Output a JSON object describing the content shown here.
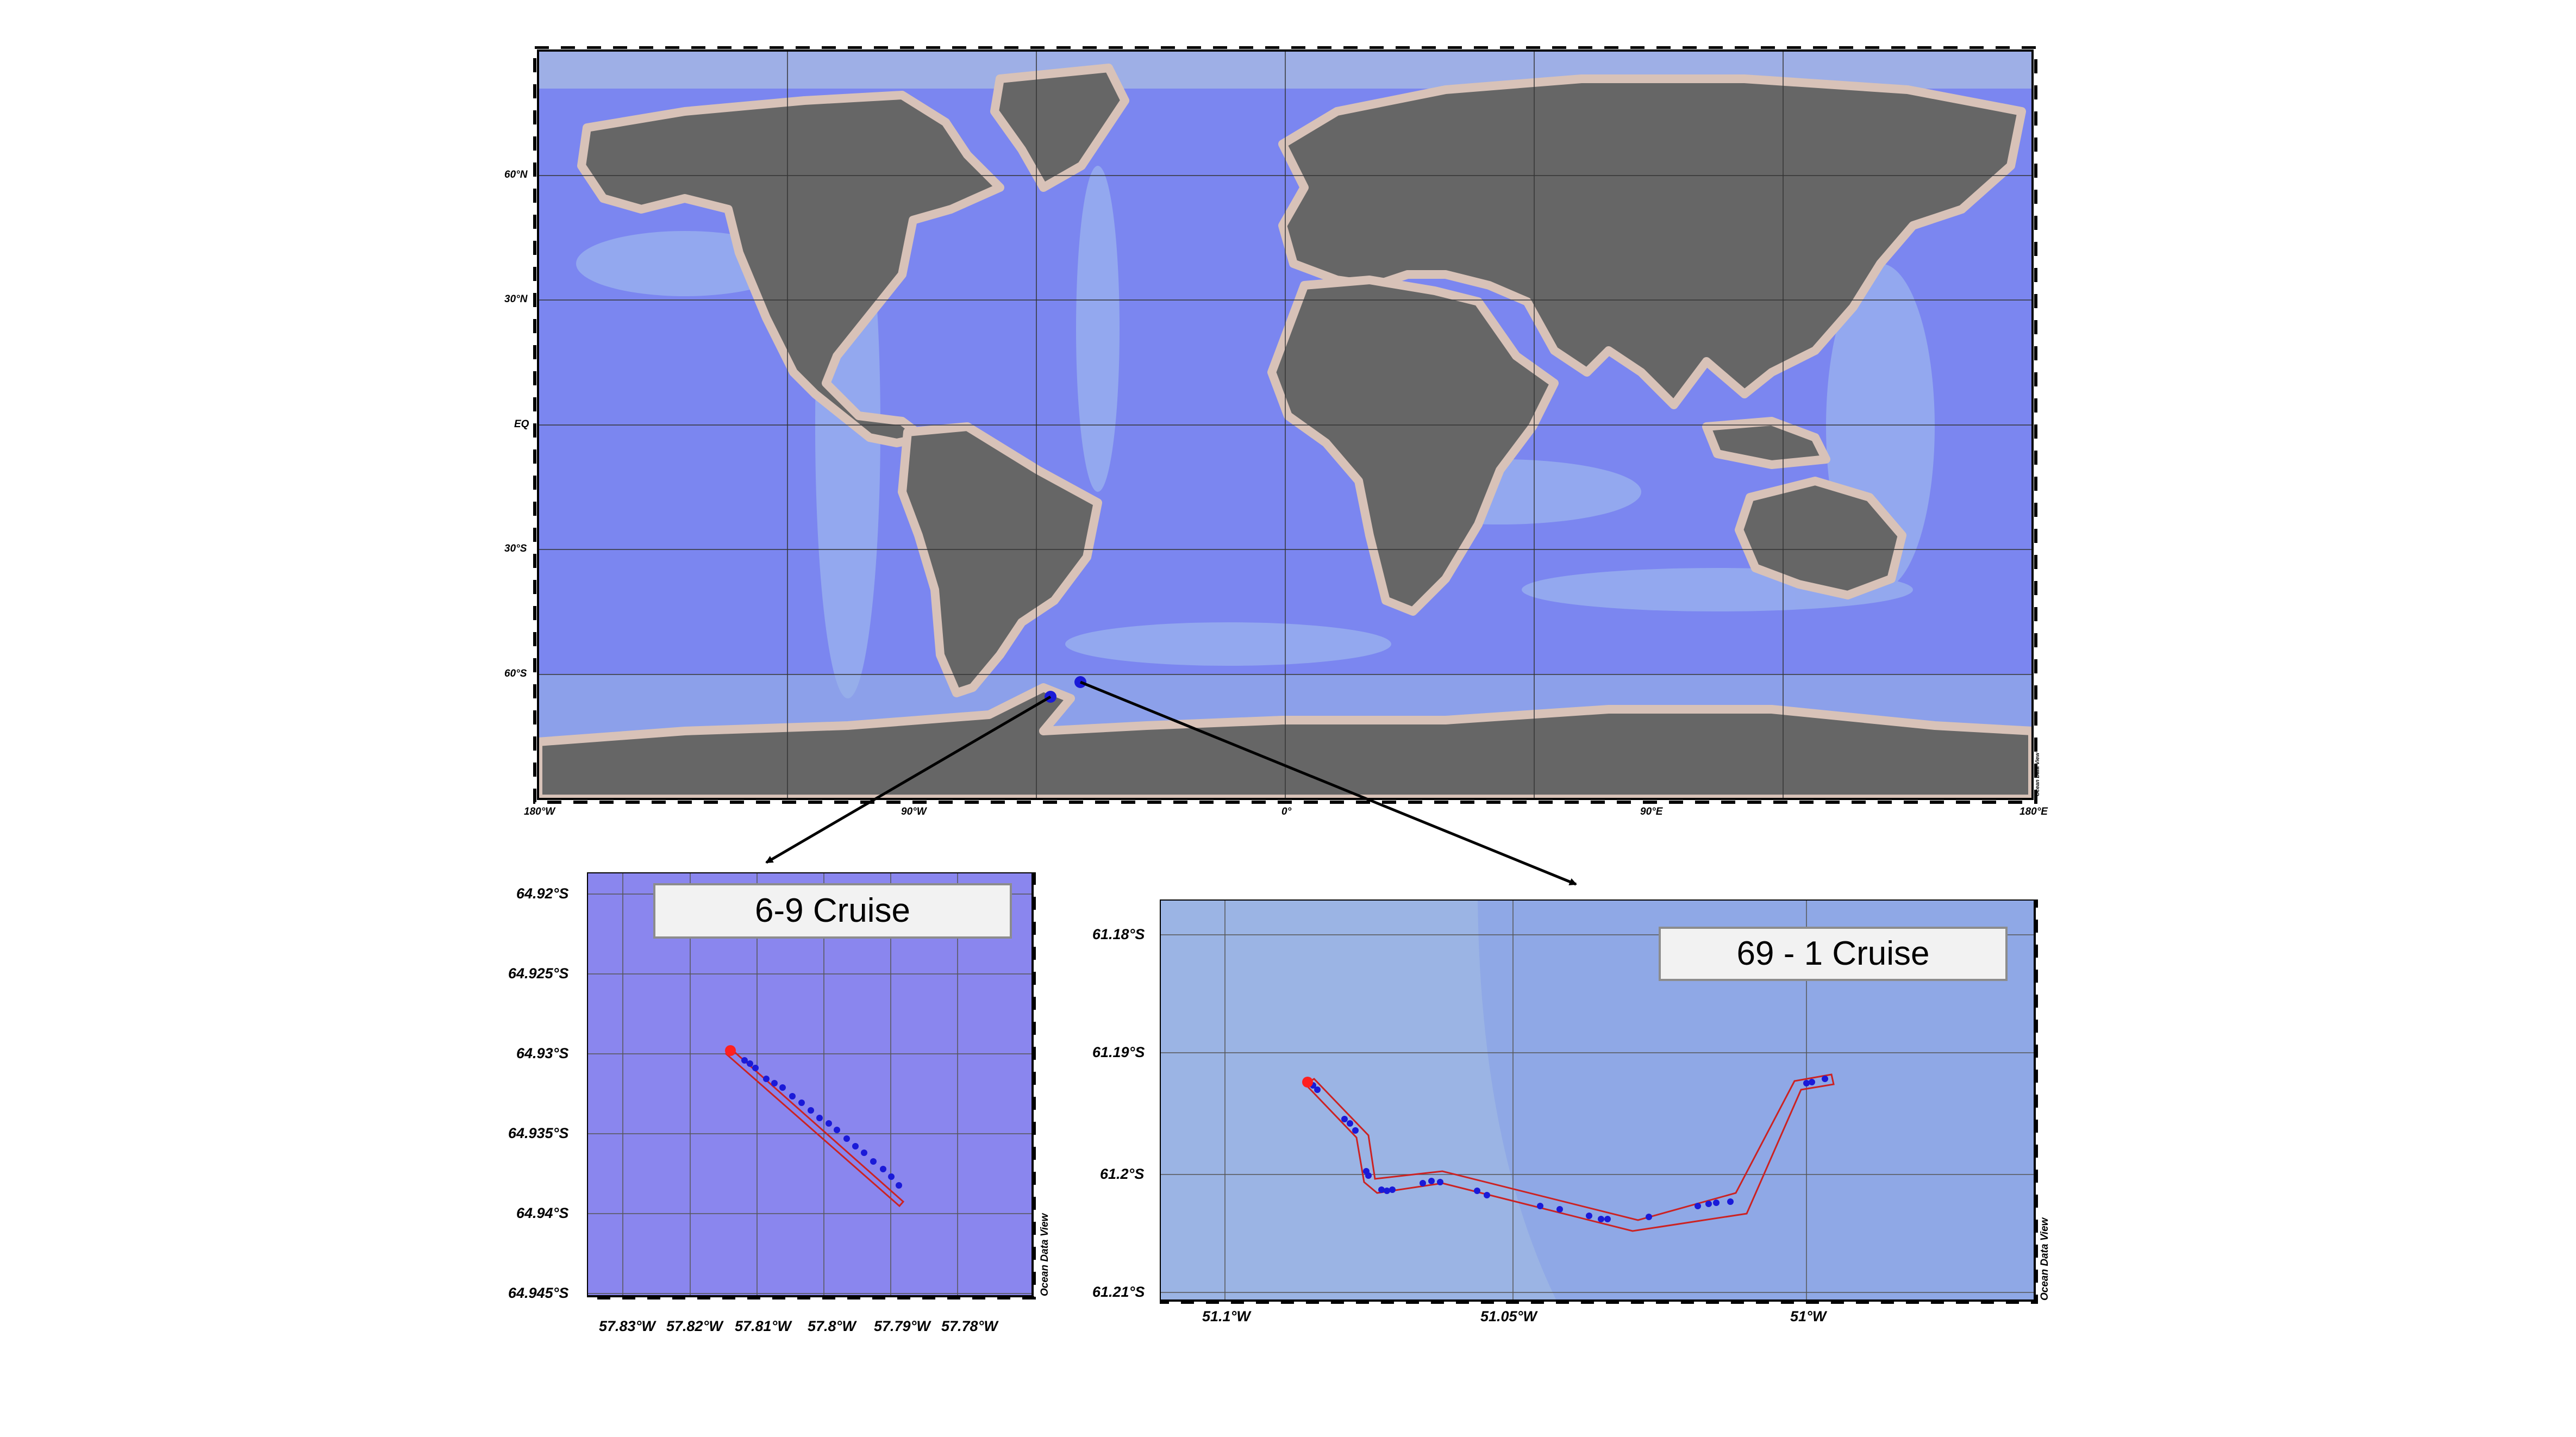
{
  "world_map": {
    "lat_labels": [
      "60°N",
      "30°N",
      "EQ",
      "30°S",
      "60°S"
    ],
    "lon_labels": [
      "180°W",
      "90°W",
      "0°",
      "90°E",
      "180°E"
    ],
    "watermark": "Ocean Data View",
    "station_markers": [
      "station-6-9",
      "station-69-1"
    ],
    "colors": {
      "ocean": "#7b86f0",
      "ocean_shallow": "#9fb8e8",
      "land": "#666666",
      "shelf": "#d8c2b8"
    }
  },
  "inset_left": {
    "title": "6-9 Cruise",
    "lat_labels": [
      "64.92°S",
      "64.925°S",
      "64.93°S",
      "64.935°S",
      "64.94°S",
      "64.945°S"
    ],
    "lon_labels": [
      "57.83°W",
      "57.82°W",
      "57.81°W",
      "57.8°W",
      "57.79°W",
      "57.78°W"
    ],
    "credit": "Ocean Data View",
    "colors": {
      "background": "#8a86ee",
      "track": "#cc2222",
      "start": "#ff2020",
      "station": "#1a1ad8"
    }
  },
  "inset_right": {
    "title": "69 - 1 Cruise",
    "lat_labels": [
      "61.18°S",
      "61.19°S",
      "61.2°S",
      "61.21°S"
    ],
    "lon_labels": [
      "51.1°W",
      "51.05°W",
      "51°W"
    ],
    "credit": "Ocean Data View",
    "colors": {
      "background": "#8fa8e6",
      "track": "#cc2222",
      "start": "#ff2020",
      "station": "#1a1ad8"
    }
  }
}
